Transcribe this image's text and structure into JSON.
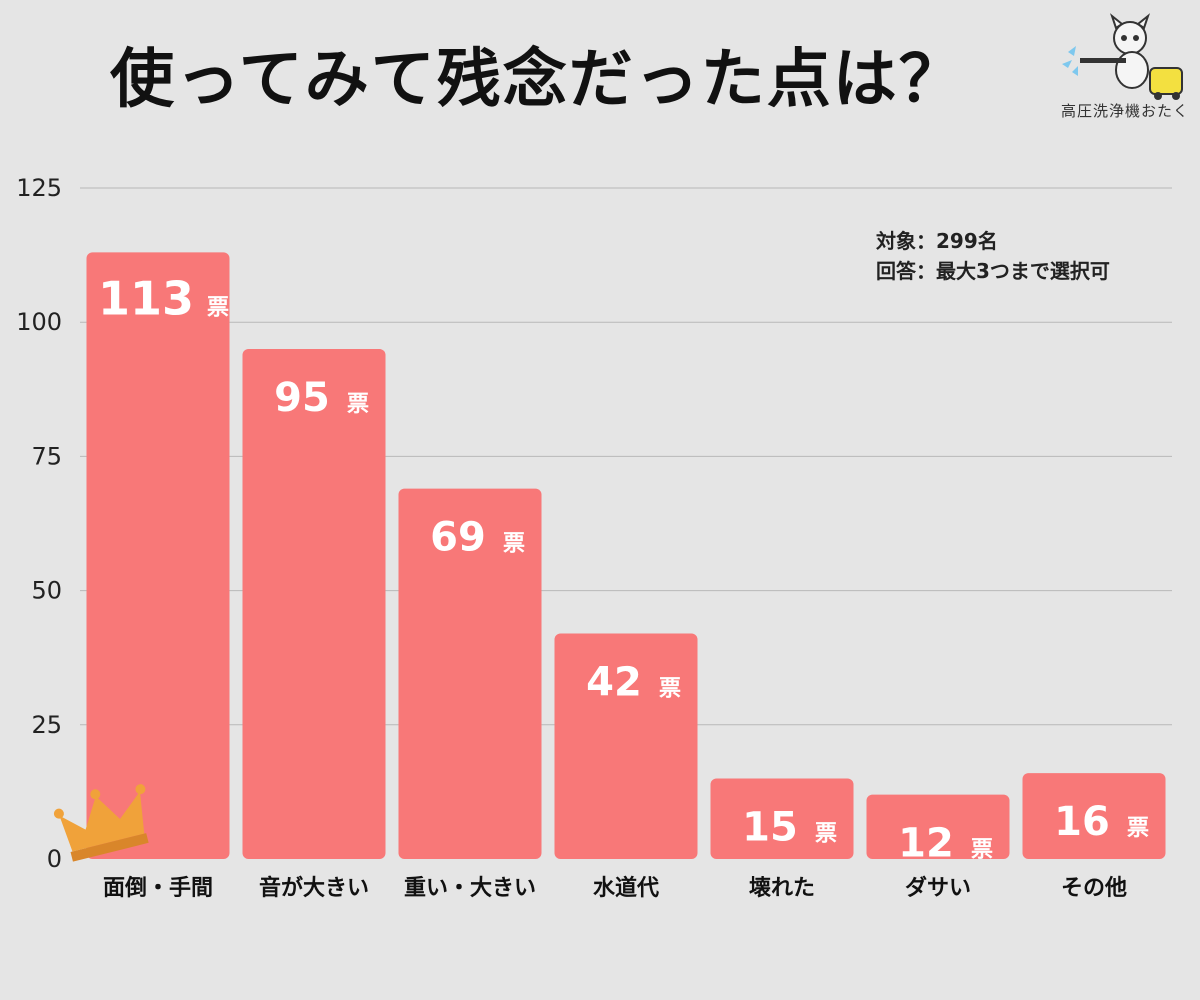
{
  "header": {
    "title": "使ってみて残念だった点は？",
    "logo_text": "高圧洗浄機おたく",
    "logo_icon": "dog-with-pressure-washer-icon"
  },
  "note": {
    "line1": "対象：299名",
    "line2": "回答：最大3つまで選択可"
  },
  "colors": {
    "bar": "#f87878",
    "grid": "#b8b8b8",
    "background": "#e5e5e5",
    "crown": "#f0a23a"
  },
  "chart_data": {
    "type": "bar",
    "title": "使ってみて残念だった点は？",
    "categories": [
      "面倒・手間",
      "音が大きい",
      "重い・大きい",
      "水道代",
      "壊れた",
      "ダサい",
      "その他"
    ],
    "values": [
      113,
      95,
      69,
      42,
      15,
      12,
      16
    ],
    "value_unit": "票",
    "yticks": [
      "0",
      "25",
      "50",
      "75",
      "100",
      "125"
    ],
    "ylim": [
      0,
      125
    ],
    "grid": true,
    "top_category_marker": "crown-icon"
  }
}
